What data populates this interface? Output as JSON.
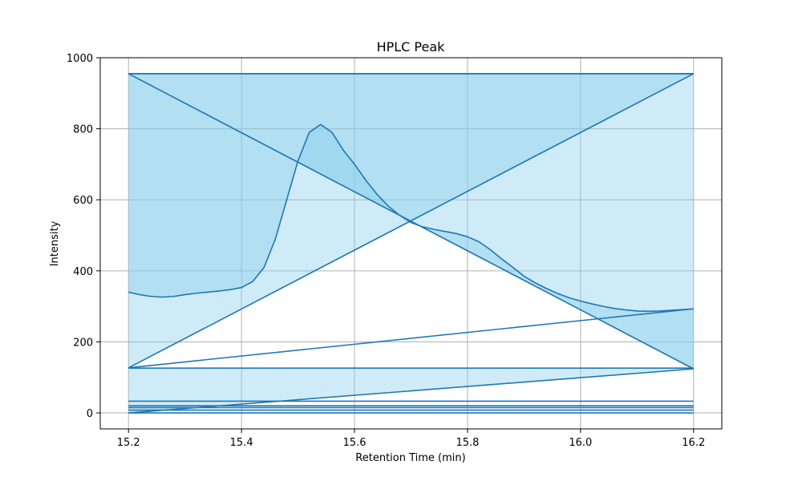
{
  "chart_data": {
    "type": "area",
    "title": "HPLC Peak",
    "xlabel": "Retention Time (min)",
    "ylabel": "Intensity",
    "xlim": [
      15.15,
      16.25
    ],
    "ylim": [
      -45,
      1000
    ],
    "xticks": [
      15.2,
      15.4,
      15.6,
      15.8,
      16.0,
      16.2
    ],
    "yticks": [
      0,
      200,
      400,
      600,
      800,
      1000
    ],
    "grid": true,
    "legend": "none",
    "colors": {
      "line": "#1f77b4",
      "fill": "#87ceeb",
      "grid": "#b0b0b0"
    },
    "fill_opacity": 0.4,
    "series": [
      {
        "curve": {
          "x": [
            15.2,
            15.22,
            15.24,
            15.26,
            15.28,
            15.3,
            15.32,
            15.34,
            15.36,
            15.38,
            15.4,
            15.42,
            15.44,
            15.46,
            15.48,
            15.5,
            15.52,
            15.54,
            15.56,
            15.58,
            15.6,
            15.62,
            15.64,
            15.66,
            15.68,
            15.7,
            15.72,
            15.74,
            15.76,
            15.78,
            15.8,
            15.82,
            15.84,
            15.86,
            15.88,
            15.9,
            15.92,
            15.94,
            15.96,
            15.98,
            16.0,
            16.02,
            16.04,
            16.06,
            16.08,
            16.1,
            16.12,
            16.14,
            16.16,
            16.18,
            16.2
          ],
          "y": [
            340,
            333,
            328,
            326,
            328,
            333,
            337,
            340,
            343,
            347,
            353,
            370,
            410,
            490,
            600,
            710,
            790,
            812,
            790,
            740,
            700,
            655,
            615,
            582,
            556,
            536,
            524,
            517,
            511,
            505,
            496,
            482,
            460,
            434,
            410,
            385,
            366,
            350,
            336,
            324,
            315,
            307,
            300,
            294,
            290,
            287,
            286,
            287,
            289,
            291,
            293
          ]
        },
        "x": [
          15.2,
          16.2,
          15.2,
          16.2,
          15.2,
          16.2,
          15.2,
          16.2,
          15.2,
          16.2,
          15.2,
          16.2,
          15.2,
          16.2,
          15.2,
          16.2
        ],
        "y": [
          0,
          0,
          8,
          8,
          15,
          15,
          20,
          20,
          33,
          33,
          126,
          126,
          955,
          955,
          955,
          955
        ],
        "link": [
          {
            "x": [
              15.2,
              16.2
            ],
            "y": [
              0,
              124
            ]
          },
          {
            "x": [
              15.2,
              16.2
            ],
            "y": [
              127,
              293
            ]
          },
          {
            "x": [
              15.2,
              16.2
            ],
            "y": [
              127,
              955
            ]
          },
          {
            "x": [
              15.2,
              16.2
            ],
            "y": [
              955,
              124
            ]
          }
        ]
      }
    ],
    "fill_polygons": [
      {
        "x": [
          15.2,
          16.2,
          15.2
        ],
        "y": [
          127,
          124,
          0
        ]
      },
      {
        "x": [
          15.2,
          16.2,
          15.2
        ],
        "y": [
          127,
          293,
          127
        ]
      },
      {
        "x": [
          15.2,
          16.2,
          15.2
        ],
        "y": [
          955,
          955,
          127
        ]
      },
      {
        "x": [
          15.2,
          16.2,
          16.2,
          15.2
        ],
        "y": [
          955,
          955,
          124,
          955
        ]
      }
    ]
  }
}
